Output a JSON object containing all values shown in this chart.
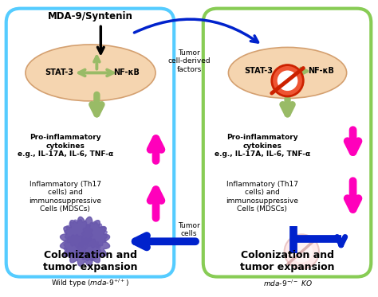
{
  "fig_width": 4.74,
  "fig_height": 3.73,
  "dpi": 100,
  "bg_color": "#ffffff",
  "left_box_color": "#55ccff",
  "right_box_color": "#88cc55",
  "ellipse_color": "#f5d5b0",
  "ellipse_edge": "#d4a070",
  "green_color": "#99bb66",
  "black_color": "#000000",
  "magenta_color": "#ff00bb",
  "blue_color": "#0022cc",
  "nosign_red": "#cc2200",
  "nosign_red2": "#ee5533",
  "title": "MDA-9/Syntenin",
  "stat3": "STAT-3",
  "nfkb": "NF-κB",
  "cytokines_text": "Pro-inflammatory\ncytokines\ne.g., IL-17A, IL-6, TNF-α",
  "inflam_text": "Inflammatory (Th17\ncells) and\nimmunosuppressive\nCells (MDSCs)",
  "colon_text": "Colonization and\ntumor expansion",
  "tumor_derived": "Tumor\ncell-derived\nfactors",
  "tumor_cells": "Tumor\ncells",
  "wildtype": "Wild type ",
  "ko_text": " KO"
}
